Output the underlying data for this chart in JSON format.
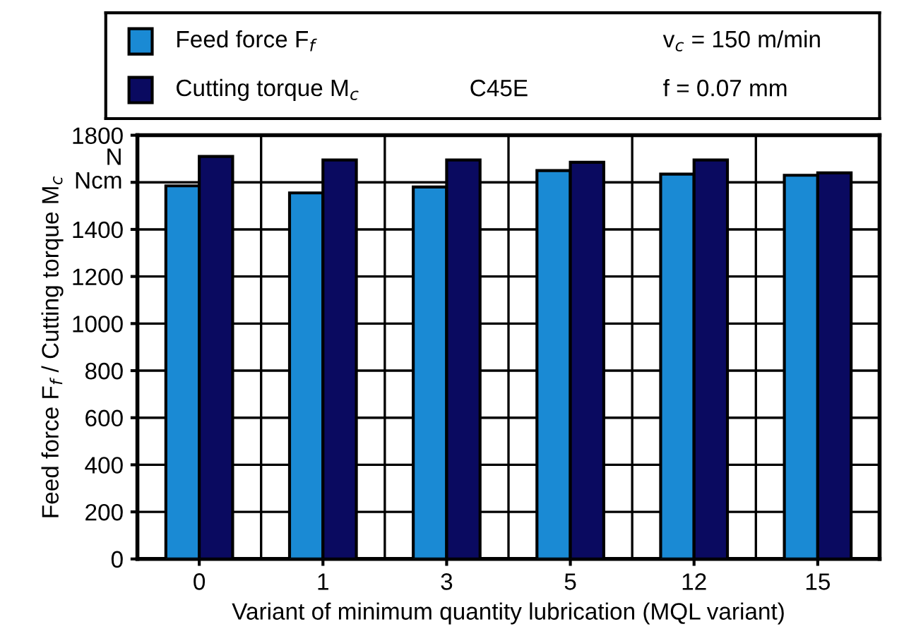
{
  "chart_data": {
    "type": "bar",
    "xlabel": "Variant of minimum quantity lubrication (MQL variant)",
    "ylabel": "Feed force F$_{f}$ / Cutting torque M$_{c}$",
    "categories": [
      "0",
      "1",
      "3",
      "5",
      "12",
      "15"
    ],
    "series": [
      {
        "name": "Feed force F$_{f}$",
        "color": "#1a8ad4",
        "values": [
          1585,
          1555,
          1580,
          1650,
          1635,
          1630
        ]
      },
      {
        "name": "Cutting torque M$_{c}$",
        "color": "#0a0a60",
        "values": [
          1710,
          1695,
          1695,
          1685,
          1695,
          1640
        ]
      }
    ],
    "ylim": [
      0,
      1800
    ],
    "yticks": [
      0,
      200,
      400,
      600,
      800,
      1000,
      1200,
      1400,
      {
        "value": 1600,
        "label": null
      },
      1800
    ],
    "grid": true,
    "legend": "top",
    "annotations": [
      "N",
      "Ncm",
      "C45E",
      "v$_{c}$ = 150 m/min",
      "f = 0.07 mm"
    ]
  }
}
